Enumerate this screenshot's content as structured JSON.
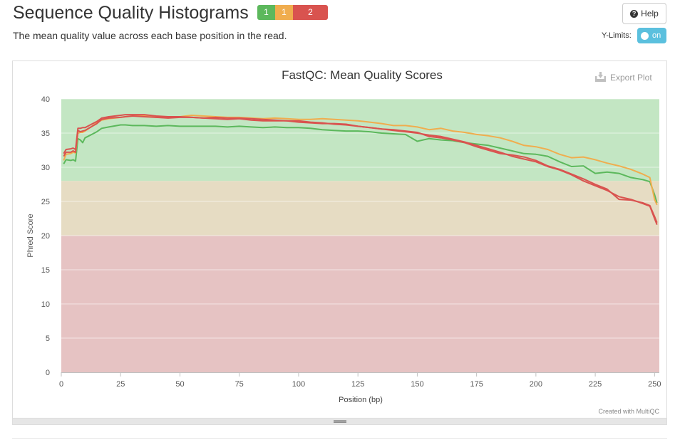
{
  "header": {
    "title": "Sequence Quality Histograms",
    "badges": [
      {
        "label": "1",
        "status": "pass",
        "color": "#5cb85c"
      },
      {
        "label": "1",
        "status": "warn",
        "color": "#f0ad4e"
      },
      {
        "label": "2",
        "status": "fail",
        "color": "#d9534f"
      }
    ],
    "description": "The mean quality value across each base position in the read.",
    "help_label": "Help",
    "help_icon": "question-circle-icon",
    "ylimits_label": "Y-Limits:",
    "ylimits_toggle": "on"
  },
  "plot": {
    "export_label": "Export Plot",
    "export_icon": "download-icon",
    "credit": "Created with MultiQC"
  },
  "chart_data": {
    "type": "line",
    "title": "FastQC: Mean Quality Scores",
    "xlabel": "Position (bp)",
    "ylabel": "Phred Score",
    "xlim": [
      0,
      252
    ],
    "ylim": [
      0,
      40
    ],
    "xticks": [
      0,
      25,
      50,
      75,
      100,
      125,
      150,
      175,
      200,
      225,
      250
    ],
    "yticks": [
      0,
      5,
      10,
      15,
      20,
      25,
      30,
      35,
      40
    ],
    "bands": [
      {
        "from": 0,
        "to": 20,
        "color": "#e6c3c3"
      },
      {
        "from": 20,
        "to": 28,
        "color": "#e6dcc3"
      },
      {
        "from": 28,
        "to": 40,
        "color": "#c3e6c3"
      }
    ],
    "grid": true,
    "legend": "none",
    "series": [
      {
        "color": "#5cb85c",
        "points": [
          [
            1,
            30.5
          ],
          [
            2,
            31.1
          ],
          [
            4,
            31.0
          ],
          [
            5,
            31.1
          ],
          [
            6,
            30.9
          ],
          [
            7,
            34.2
          ],
          [
            8,
            34.0
          ],
          [
            9,
            33.6
          ],
          [
            10,
            34.3
          ],
          [
            15,
            35.2
          ],
          [
            17,
            35.7
          ],
          [
            20,
            35.9
          ],
          [
            25,
            36.2
          ],
          [
            27,
            36.2
          ],
          [
            30,
            36.1
          ],
          [
            35,
            36.1
          ],
          [
            40,
            36.0
          ],
          [
            45,
            36.1
          ],
          [
            50,
            36.0
          ],
          [
            55,
            36.0
          ],
          [
            60,
            36.0
          ],
          [
            65,
            36.0
          ],
          [
            70,
            35.9
          ],
          [
            75,
            36.0
          ],
          [
            80,
            35.9
          ],
          [
            85,
            35.8
          ],
          [
            90,
            35.9
          ],
          [
            95,
            35.8
          ],
          [
            100,
            35.8
          ],
          [
            105,
            35.7
          ],
          [
            110,
            35.5
          ],
          [
            115,
            35.4
          ],
          [
            120,
            35.3
          ],
          [
            125,
            35.3
          ],
          [
            130,
            35.2
          ],
          [
            135,
            35.0
          ],
          [
            140,
            34.9
          ],
          [
            145,
            34.8
          ],
          [
            150,
            33.8
          ],
          [
            155,
            34.2
          ],
          [
            160,
            34.0
          ],
          [
            165,
            33.9
          ],
          [
            170,
            33.6
          ],
          [
            175,
            33.4
          ],
          [
            180,
            33.2
          ],
          [
            185,
            32.8
          ],
          [
            190,
            32.4
          ],
          [
            195,
            32.0
          ],
          [
            200,
            31.9
          ],
          [
            205,
            31.6
          ],
          [
            210,
            30.8
          ],
          [
            215,
            30.1
          ],
          [
            220,
            30.2
          ],
          [
            225,
            29.1
          ],
          [
            230,
            29.3
          ],
          [
            235,
            29.1
          ],
          [
            240,
            28.5
          ],
          [
            245,
            28.2
          ],
          [
            248,
            27.9
          ],
          [
            250,
            26.0
          ],
          [
            251,
            24.8
          ]
        ]
      },
      {
        "color": "#f0ad4e",
        "points": [
          [
            1,
            31.0
          ],
          [
            2,
            31.9
          ],
          [
            4,
            32.0
          ],
          [
            5,
            32.2
          ],
          [
            6,
            32.1
          ],
          [
            7,
            35.0
          ],
          [
            8,
            35.1
          ],
          [
            9,
            35.1
          ],
          [
            10,
            35.3
          ],
          [
            15,
            36.5
          ],
          [
            17,
            36.9
          ],
          [
            20,
            37.1
          ],
          [
            25,
            37.3
          ],
          [
            27,
            37.4
          ],
          [
            30,
            37.5
          ],
          [
            35,
            37.5
          ],
          [
            40,
            37.3
          ],
          [
            45,
            37.3
          ],
          [
            50,
            37.4
          ],
          [
            55,
            37.6
          ],
          [
            60,
            37.5
          ],
          [
            65,
            37.4
          ],
          [
            70,
            37.3
          ],
          [
            75,
            37.3
          ],
          [
            80,
            37.2
          ],
          [
            85,
            37.1
          ],
          [
            90,
            37.2
          ],
          [
            95,
            37.1
          ],
          [
            100,
            37.0
          ],
          [
            105,
            37.0
          ],
          [
            110,
            37.1
          ],
          [
            115,
            37.0
          ],
          [
            120,
            36.9
          ],
          [
            125,
            36.8
          ],
          [
            130,
            36.6
          ],
          [
            135,
            36.4
          ],
          [
            140,
            36.1
          ],
          [
            145,
            36.1
          ],
          [
            150,
            35.9
          ],
          [
            155,
            35.5
          ],
          [
            160,
            35.7
          ],
          [
            165,
            35.3
          ],
          [
            170,
            35.1
          ],
          [
            175,
            34.8
          ],
          [
            180,
            34.6
          ],
          [
            185,
            34.3
          ],
          [
            190,
            33.8
          ],
          [
            195,
            33.2
          ],
          [
            200,
            33.0
          ],
          [
            205,
            32.6
          ],
          [
            210,
            31.9
          ],
          [
            215,
            31.4
          ],
          [
            220,
            31.5
          ],
          [
            225,
            31.1
          ],
          [
            230,
            30.6
          ],
          [
            235,
            30.2
          ],
          [
            240,
            29.7
          ],
          [
            245,
            29.0
          ],
          [
            248,
            28.5
          ],
          [
            250,
            25.3
          ],
          [
            251,
            24.5
          ]
        ]
      },
      {
        "color": "#d9534f",
        "points": [
          [
            1,
            32.0
          ],
          [
            2,
            32.6
          ],
          [
            4,
            32.7
          ],
          [
            5,
            32.8
          ],
          [
            6,
            32.6
          ],
          [
            7,
            35.7
          ],
          [
            8,
            35.7
          ],
          [
            9,
            35.8
          ],
          [
            10,
            35.8
          ],
          [
            15,
            36.7
          ],
          [
            17,
            37.2
          ],
          [
            20,
            37.4
          ],
          [
            25,
            37.6
          ],
          [
            27,
            37.7
          ],
          [
            30,
            37.7
          ],
          [
            35,
            37.7
          ],
          [
            40,
            37.5
          ],
          [
            45,
            37.4
          ],
          [
            50,
            37.4
          ],
          [
            55,
            37.3
          ],
          [
            60,
            37.2
          ],
          [
            65,
            37.3
          ],
          [
            70,
            37.2
          ],
          [
            75,
            37.2
          ],
          [
            80,
            37.1
          ],
          [
            85,
            37.0
          ],
          [
            90,
            36.9
          ],
          [
            95,
            36.8
          ],
          [
            100,
            36.6
          ],
          [
            105,
            36.5
          ],
          [
            110,
            36.4
          ],
          [
            115,
            36.4
          ],
          [
            120,
            36.3
          ],
          [
            125,
            36.0
          ],
          [
            130,
            35.8
          ],
          [
            135,
            35.6
          ],
          [
            140,
            35.4
          ],
          [
            145,
            35.2
          ],
          [
            150,
            35.0
          ],
          [
            155,
            34.7
          ],
          [
            160,
            34.5
          ],
          [
            165,
            34.1
          ],
          [
            170,
            33.7
          ],
          [
            175,
            33.2
          ],
          [
            180,
            32.7
          ],
          [
            185,
            32.2
          ],
          [
            190,
            31.6
          ],
          [
            195,
            31.2
          ],
          [
            200,
            30.8
          ],
          [
            205,
            30.1
          ],
          [
            210,
            29.6
          ],
          [
            215,
            28.9
          ],
          [
            220,
            28.0
          ],
          [
            225,
            27.3
          ],
          [
            230,
            26.6
          ],
          [
            235,
            25.7
          ],
          [
            240,
            25.3
          ],
          [
            245,
            24.7
          ],
          [
            248,
            24.3
          ],
          [
            250,
            22.5
          ],
          [
            251,
            21.6
          ]
        ]
      },
      {
        "color": "#d9534f",
        "points": [
          [
            1,
            31.6
          ],
          [
            2,
            32.2
          ],
          [
            4,
            32.2
          ],
          [
            5,
            32.4
          ],
          [
            6,
            32.2
          ],
          [
            7,
            35.4
          ],
          [
            8,
            35.2
          ],
          [
            9,
            35.3
          ],
          [
            10,
            35.4
          ],
          [
            15,
            36.4
          ],
          [
            17,
            37.0
          ],
          [
            20,
            37.2
          ],
          [
            25,
            37.3
          ],
          [
            27,
            37.4
          ],
          [
            30,
            37.5
          ],
          [
            35,
            37.4
          ],
          [
            40,
            37.3
          ],
          [
            45,
            37.2
          ],
          [
            50,
            37.3
          ],
          [
            55,
            37.3
          ],
          [
            60,
            37.2
          ],
          [
            65,
            37.1
          ],
          [
            70,
            37.0
          ],
          [
            75,
            37.1
          ],
          [
            80,
            36.9
          ],
          [
            85,
            36.8
          ],
          [
            90,
            36.8
          ],
          [
            95,
            36.8
          ],
          [
            100,
            36.8
          ],
          [
            105,
            36.6
          ],
          [
            110,
            36.5
          ],
          [
            115,
            36.3
          ],
          [
            120,
            36.2
          ],
          [
            125,
            36.0
          ],
          [
            130,
            35.8
          ],
          [
            135,
            35.6
          ],
          [
            140,
            35.5
          ],
          [
            145,
            35.3
          ],
          [
            150,
            35.1
          ],
          [
            155,
            34.5
          ],
          [
            160,
            34.3
          ],
          [
            165,
            34.0
          ],
          [
            170,
            33.6
          ],
          [
            175,
            33.0
          ],
          [
            180,
            32.5
          ],
          [
            185,
            32.0
          ],
          [
            190,
            31.8
          ],
          [
            195,
            31.5
          ],
          [
            200,
            31.0
          ],
          [
            205,
            30.2
          ],
          [
            210,
            29.7
          ],
          [
            215,
            29.0
          ],
          [
            220,
            28.3
          ],
          [
            225,
            27.5
          ],
          [
            230,
            26.8
          ],
          [
            235,
            25.3
          ],
          [
            240,
            25.2
          ],
          [
            245,
            24.8
          ],
          [
            248,
            24.4
          ],
          [
            250,
            22.8
          ],
          [
            251,
            21.9
          ]
        ]
      }
    ]
  }
}
